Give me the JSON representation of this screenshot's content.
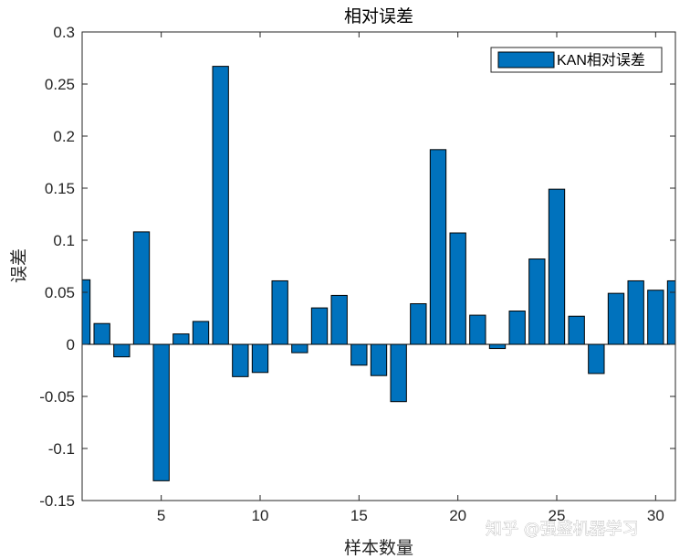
{
  "watermark": "知乎 @强盛机器学习",
  "chart_data": {
    "type": "bar",
    "title": "相对误差",
    "xlabel": "样本数量",
    "ylabel": "误差",
    "xlim": [
      1,
      31
    ],
    "ylim": [
      -0.15,
      0.3
    ],
    "xticks": [
      5,
      10,
      15,
      20,
      25,
      30
    ],
    "yticks": [
      -0.15,
      -0.1,
      -0.05,
      0,
      0.05,
      0.1,
      0.15,
      0.2,
      0.25,
      0.3
    ],
    "ytick_labels": [
      "-0.15",
      "-0.1",
      "-0.05",
      "0",
      "0.05",
      "0.1",
      "0.15",
      "0.2",
      "0.25",
      "0.3"
    ],
    "grid": false,
    "legend_position": "top-right",
    "bar_color": "#0072BD",
    "series": [
      {
        "name": "KAN相对误差",
        "x": [
          1,
          2,
          3,
          4,
          5,
          6,
          7,
          8,
          9,
          10,
          11,
          12,
          13,
          14,
          15,
          16,
          17,
          18,
          19,
          20,
          21,
          22,
          23,
          24,
          25,
          26,
          27,
          28,
          29,
          30,
          31
        ],
        "values": [
          0.062,
          0.02,
          -0.012,
          0.108,
          -0.131,
          0.01,
          0.022,
          0.267,
          -0.031,
          -0.027,
          0.061,
          -0.008,
          0.035,
          0.047,
          -0.02,
          -0.03,
          -0.055,
          0.039,
          0.187,
          0.107,
          0.028,
          -0.004,
          0.032,
          0.082,
          0.149,
          0.027,
          -0.028,
          0.049,
          0.061,
          0.052,
          0.061
        ]
      }
    ]
  }
}
